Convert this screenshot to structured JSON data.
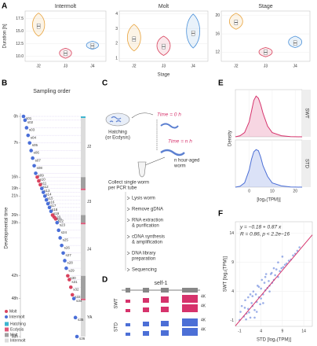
{
  "panels": [
    "A",
    "B",
    "C",
    "D",
    "E",
    "F"
  ],
  "chart_data": [
    {
      "type": "violin",
      "title": "Intermolt",
      "ylabel": "Duration [h]",
      "categories": [
        "J2",
        "J3",
        "J4"
      ],
      "values": [
        16,
        10.6,
        12.1
      ],
      "ranges": [
        [
          14,
          18.6
        ],
        [
          9.6,
          11.6
        ],
        [
          11.4,
          13
        ]
      ],
      "colors": [
        "#e8a33d",
        "#d9435e",
        "#4a90d9"
      ],
      "ylim": [
        9,
        19
      ],
      "yticks": [
        {
          "value": 10,
          "label": "10.0"
        },
        {
          "value": 12.5,
          "label": "12.5"
        },
        {
          "value": 15,
          "label": "15.0"
        },
        {
          "value": 17.5,
          "label": "17.5"
        }
      ]
    },
    {
      "type": "violin",
      "title": "Molt",
      "xlabel": "Stage",
      "categories": [
        "J2",
        "J3",
        "J4"
      ],
      "values": [
        2.3,
        1.8,
        2.7
      ],
      "ranges": [
        [
          1.5,
          3.3
        ],
        [
          1.2,
          2.5
        ],
        [
          1.7,
          4
        ]
      ],
      "colors": [
        "#e8a33d",
        "#d9435e",
        "#4a90d9"
      ],
      "ylim": [
        0.8,
        4.2
      ],
      "yticks": [
        1,
        2,
        3,
        4
      ]
    },
    {
      "type": "violin",
      "title": "Stage",
      "categories": [
        "J2",
        "J3",
        "J4"
      ],
      "values": [
        18.5,
        12,
        14
      ],
      "ranges": [
        [
          17,
          20.5
        ],
        [
          11,
          13
        ],
        [
          13,
          15.5
        ]
      ],
      "colors": [
        "#e8a33d",
        "#d9435e",
        "#4a90d9"
      ],
      "ylim": [
        10,
        21
      ],
      "yticks": [
        12,
        16,
        20
      ]
    },
    {
      "type": "timeline",
      "title": "Sampling order",
      "ylabel": "Developmental time",
      "xlim": [
        0,
        37
      ],
      "ylim": [
        0,
        58
      ],
      "yticks": [
        {
          "value": 0,
          "label": "0h"
        },
        {
          "value": 7,
          "label": "7h"
        },
        {
          "value": 16,
          "label": "16h"
        },
        {
          "value": 19,
          "label": "19h"
        },
        {
          "value": 21,
          "label": "21h"
        },
        {
          "value": 26,
          "label": "26h"
        },
        {
          "value": 28,
          "label": "28h"
        },
        {
          "value": 42,
          "label": "42h"
        },
        {
          "value": 48,
          "label": "48h"
        },
        {
          "value": 58,
          "label": "58h"
        }
      ],
      "series": [
        {
          "name": "Molt",
          "color": "#d9435e",
          "samples": [
            "s10",
            "s11",
            "s12",
            "s20",
            "s21",
            "s22",
            "s30",
            "s31",
            "s32",
            "s33"
          ],
          "x": [
            10,
            11,
            12,
            20,
            21,
            22,
            30,
            31,
            32,
            33
          ],
          "values": [
            16,
            17,
            18,
            26,
            26.5,
            27,
            42,
            43,
            45,
            47
          ]
        },
        {
          "name": "Intermolt",
          "color": "#4a6fd8",
          "samples": [
            "s01",
            "s02",
            "s03",
            "s04",
            "s05",
            "s06",
            "s07",
            "s08",
            "s09",
            "s13",
            "s14",
            "s15",
            "s16",
            "s17",
            "s18",
            "s19",
            "s23",
            "s24",
            "s25",
            "s26",
            "s27",
            "s28",
            "s29",
            "s34",
            "s35",
            "s36"
          ],
          "x": [
            1,
            2,
            3,
            4,
            5,
            6,
            7,
            8,
            9,
            13,
            14,
            15,
            16,
            17,
            18,
            19,
            23,
            24,
            25,
            26,
            27,
            28,
            29,
            34,
            35,
            36
          ],
          "values": [
            0,
            1,
            3,
            5,
            7,
            9,
            11,
            13,
            15,
            19,
            20,
            21,
            22,
            23,
            24,
            25,
            28,
            30,
            32,
            34,
            36,
            38,
            40,
            48,
            53,
            58
          ]
        }
      ],
      "stages": [
        {
          "name": "J2",
          "start": 0,
          "end": 16
        },
        {
          "name": "J3",
          "start": 19,
          "end": 26
        },
        {
          "name": "J4",
          "start": 28,
          "end": 42
        },
        {
          "name": "YA",
          "start": 48,
          "end": 58
        }
      ],
      "molts": [
        [
          16,
          19
        ],
        [
          26,
          28
        ],
        [
          42,
          48
        ]
      ],
      "bar_legend": [
        {
          "name": "Hatching",
          "color": "#3db5d0"
        },
        {
          "name": "Ecdysis",
          "color": "#e0587a"
        },
        {
          "name": "Molt",
          "color": "#a0a0a0"
        },
        {
          "name": "Intermolt",
          "color": "#dcdcdc"
        }
      ]
    },
    {
      "type": "density",
      "xlabel": "[log₂(TPM)]",
      "ylabel": "Density",
      "xlim": [
        -6,
        23
      ],
      "ylim": [
        0,
        0.22
      ],
      "xticks": [
        0,
        10,
        20
      ],
      "x": [
        -6,
        -4,
        -2,
        0,
        1,
        2,
        3,
        4,
        5,
        6,
        8,
        10,
        14,
        18,
        23
      ],
      "series": [
        {
          "name": "SWT",
          "color": "#d6336c",
          "values": [
            0,
            0.005,
            0.02,
            0.07,
            0.12,
            0.17,
            0.19,
            0.18,
            0.15,
            0.11,
            0.05,
            0.02,
            0.005,
            0.001,
            0
          ]
        },
        {
          "name": "STD",
          "color": "#4c6fd6",
          "values": [
            0,
            0.004,
            0.02,
            0.08,
            0.13,
            0.165,
            0.175,
            0.17,
            0.14,
            0.1,
            0.05,
            0.02,
            0.006,
            0.001,
            0
          ]
        }
      ]
    },
    {
      "type": "scatter",
      "xlabel": "STD [log₂(TPM)]",
      "ylabel": "SWT [log₂(TPM)]",
      "color": "#4c6fd6",
      "fit_color": "#d6336c",
      "annotations": [
        "y = −0.18 + 0.87 x",
        "R = 0.86, p < 2.2e−16"
      ],
      "fit": {
        "intercept": -0.18,
        "slope": 0.87
      },
      "xlim": [
        -2,
        16
      ],
      "ylim": [
        -2,
        16
      ],
      "xticks": [
        -1,
        4,
        9,
        14
      ],
      "yticks": [
        -1,
        4,
        9,
        14
      ],
      "x": [
        -1,
        -0.5,
        0,
        0.3,
        0.6,
        1,
        1.2,
        1.5,
        1.8,
        2,
        2.2,
        2.5,
        2.8,
        3,
        3.2,
        3.5,
        3.8,
        4,
        4.2,
        4.5,
        4.8,
        5,
        5.2,
        5.5,
        5.8,
        6,
        6.3,
        6.6,
        7,
        7.3,
        7.6,
        8,
        8.4,
        8.8,
        9.2,
        9.6,
        10,
        10.5,
        11,
        11.5,
        12,
        12.5,
        13,
        0.5,
        1,
        2,
        3,
        4,
        5,
        6,
        7,
        8,
        2.5,
        3.5,
        1.5,
        4.5,
        6.5,
        9,
        -0.8,
        0.2
      ],
      "y": [
        -0.9,
        1.5,
        -0.3,
        2.5,
        0.2,
        3,
        0.4,
        -0.5,
        2,
        1.5,
        4,
        0.8,
        3.5,
        2.2,
        5,
        3,
        1.8,
        4.5,
        6,
        3.5,
        5.5,
        4.2,
        7,
        4.6,
        5.8,
        5,
        7,
        5.5,
        6,
        6.8,
        7.8,
        6.5,
        7.5,
        8,
        8.2,
        8.6,
        8.8,
        9.3,
        9.5,
        10.2,
        10.5,
        11,
        11.6,
        -0.8,
        1,
        3.2,
        0.5,
        2.8,
        6.5,
        4,
        8,
        9,
        -0.5,
        4.8,
        3.5,
        2,
        7.2,
        10,
        0.5,
        1.2
      ]
    }
  ],
  "protocol": {
    "time_start": "Time = 0 h",
    "time_end": "Time = n h",
    "hatching": [
      "Hatching",
      "(or Ecdysis)"
    ],
    "aged_worm": [
      "n hour-aged",
      "worm"
    ],
    "collect": [
      "Collect single worm",
      "per PCR tube"
    ],
    "steps": [
      [
        "Lysis worm"
      ],
      [
        "Remove gDNA"
      ],
      [
        "RNA extraction",
        "& purification"
      ],
      [
        "cDNA synthesis",
        "& amplification"
      ],
      [
        "DNA library",
        "preparation"
      ],
      [
        "Sequencing"
      ]
    ]
  },
  "tracks": {
    "gene": "self-1",
    "names": [
      "SWT",
      "STD"
    ],
    "scale_labels": [
      "4K",
      "4K",
      "4K",
      "4K"
    ]
  }
}
